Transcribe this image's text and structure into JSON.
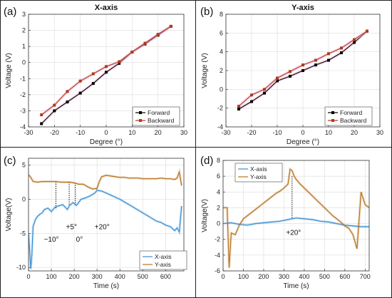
{
  "chart_data": [
    {
      "panel": "(a)",
      "type": "line",
      "title": "X-axis",
      "xlabel": "Degree (°)",
      "ylabel": "Voltage (V)",
      "xlim": [
        -30,
        30
      ],
      "ylim": [
        -4,
        3
      ],
      "xticks": [
        -30,
        -20,
        -10,
        0,
        10,
        20,
        30
      ],
      "yticks": [
        -4,
        -3,
        -2,
        -1,
        0,
        1,
        2,
        3
      ],
      "grid": true,
      "legend": "bottom-right",
      "series": [
        {
          "name": "Forward",
          "color": "#000000",
          "x": [
            -25,
            -20,
            -15,
            -10,
            -5,
            0,
            5,
            10,
            15,
            20,
            25
          ],
          "y": [
            -3.8,
            -3.0,
            -2.45,
            -1.9,
            -1.3,
            -0.6,
            -0.05,
            0.65,
            1.15,
            1.7,
            2.25
          ]
        },
        {
          "name": "Backward",
          "color": "#b03a1a",
          "x": [
            -25,
            -20,
            -15,
            -10,
            -5,
            0,
            5,
            10,
            15,
            20,
            25
          ],
          "y": [
            -3.25,
            -2.65,
            -1.8,
            -1.15,
            -0.7,
            -0.25,
            0.05,
            0.65,
            1.2,
            1.75,
            2.25
          ]
        }
      ]
    },
    {
      "panel": "(b)",
      "type": "line",
      "title": "Y-axis",
      "xlabel": "Degree (°)",
      "ylabel": "Voltage (V)",
      "xlim": [
        -30,
        30
      ],
      "ylim": [
        -4,
        8
      ],
      "xticks": [
        -30,
        -20,
        -10,
        0,
        10,
        20,
        30
      ],
      "yticks": [
        -4,
        -2,
        0,
        2,
        4,
        6,
        8
      ],
      "grid": true,
      "legend": "bottom-right",
      "series": [
        {
          "name": "Forward",
          "color": "#000000",
          "x": [
            -25,
            -20,
            -15,
            -10,
            -5,
            0,
            5,
            10,
            15,
            20,
            25
          ],
          "y": [
            -2.1,
            -1.3,
            -0.4,
            0.9,
            1.4,
            2.0,
            2.6,
            3.1,
            3.9,
            5.0,
            6.2
          ]
        },
        {
          "name": "Backward",
          "color": "#b03a1a",
          "x": [
            -25,
            -20,
            -15,
            -10,
            -5,
            0,
            5,
            10,
            15,
            20,
            25
          ],
          "y": [
            -1.8,
            -0.6,
            0.0,
            1.2,
            1.9,
            2.6,
            3.1,
            3.8,
            4.4,
            5.3,
            6.2
          ]
        }
      ]
    },
    {
      "panel": "(c)",
      "type": "line",
      "xlabel": "Time (s)",
      "ylabel": "Voltage(V)",
      "xlim": [
        0,
        680
      ],
      "ylim": [
        -10.5,
        6
      ],
      "xticks": [
        0,
        100,
        200,
        300,
        400,
        500,
        600
      ],
      "yticks": [
        -10,
        -5,
        0,
        5
      ],
      "grid": true,
      "legend": "bottom-right",
      "annotations": [
        {
          "text": "−10°",
          "x": 120
        },
        {
          "text": "0°",
          "x": 205
        },
        {
          "text": "+5°",
          "x": 170
        },
        {
          "text": "+20°",
          "x": 295
        }
      ],
      "series": [
        {
          "name": "X-axis",
          "color": "#3a8fd0",
          "x": [
            0,
            10,
            15,
            20,
            30,
            40,
            50,
            60,
            70,
            85,
            100,
            115,
            130,
            150,
            170,
            180,
            195,
            210,
            230,
            250,
            270,
            290,
            300,
            320,
            340,
            360,
            380,
            400,
            420,
            440,
            460,
            480,
            500,
            520,
            540,
            560,
            580,
            600,
            620,
            640,
            650,
            660,
            670
          ],
          "y": [
            -5,
            -10.2,
            -8,
            -4,
            -3,
            -2.5,
            -2.2,
            -2,
            -1.5,
            -1.3,
            -1.8,
            -1.2,
            -1.0,
            -0.8,
            -1.5,
            -0.9,
            -0.5,
            -0.9,
            0.0,
            0.2,
            0.5,
            0.9,
            1.3,
            1.2,
            0.9,
            0.6,
            0.3,
            0.0,
            -0.4,
            -0.8,
            -1.2,
            -1.6,
            -2.0,
            -2.4,
            -2.8,
            -3.2,
            -3.4,
            -3.8,
            -4.0,
            -4.6,
            -4.2,
            -4.8,
            -1.0
          ]
        },
        {
          "name": "Y-axis",
          "color": "#b8741f",
          "x": [
            0,
            10,
            20,
            40,
            60,
            80,
            100,
            120,
            140,
            160,
            180,
            200,
            220,
            240,
            260,
            280,
            300,
            310,
            320,
            340,
            360,
            380,
            400,
            420,
            440,
            460,
            480,
            500,
            520,
            540,
            560,
            580,
            600,
            620,
            640,
            650,
            660,
            670
          ],
          "y": [
            3.6,
            3.2,
            2.6,
            2.5,
            2.6,
            2.6,
            2.6,
            2.6,
            2.5,
            2.5,
            2.5,
            2.4,
            2.2,
            2.2,
            1.8,
            1.5,
            1.6,
            2.6,
            3.3,
            3.5,
            3.4,
            3.3,
            3.2,
            3.2,
            3.1,
            3.1,
            3.1,
            3.0,
            3.0,
            3.0,
            3.0,
            3.1,
            3.0,
            3.0,
            2.9,
            3.1,
            4.0,
            2.0
          ]
        }
      ]
    },
    {
      "panel": "(d)",
      "type": "line",
      "xlabel": "Time (s)",
      "ylabel": "Voltage(V)",
      "xlim": [
        0,
        720
      ],
      "ylim": [
        -6,
        8
      ],
      "xticks": [
        0,
        100,
        200,
        300,
        400,
        500,
        600,
        700
      ],
      "yticks": [
        -6,
        -4,
        -2,
        0,
        2,
        4,
        6,
        8
      ],
      "grid": true,
      "legend": "top-left",
      "annotations": [
        {
          "text": "+20°",
          "x": 340
        }
      ],
      "series": [
        {
          "name": "X-axis",
          "color": "#3a8fd0",
          "x": [
            0,
            40,
            80,
            120,
            160,
            200,
            240,
            280,
            320,
            340,
            360,
            400,
            440,
            480,
            520,
            560,
            600,
            640,
            680,
            720
          ],
          "y": [
            0.0,
            0.1,
            -0.1,
            -0.2,
            0.0,
            0.1,
            0.2,
            0.3,
            0.5,
            0.6,
            0.7,
            0.6,
            0.5,
            0.3,
            0.2,
            0.0,
            -0.2,
            -0.3,
            -0.4,
            -0.4
          ]
        },
        {
          "name": "Y-axis",
          "color": "#b8741f",
          "x": [
            0,
            20,
            30,
            40,
            60,
            80,
            100,
            120,
            140,
            160,
            180,
            200,
            220,
            240,
            260,
            280,
            300,
            320,
            330,
            340,
            350,
            360,
            380,
            400,
            420,
            440,
            460,
            480,
            500,
            520,
            540,
            560,
            580,
            600,
            620,
            640,
            660,
            680,
            700,
            720
          ],
          "y": [
            2.0,
            2.0,
            -5.6,
            -1.2,
            -1.4,
            -0.2,
            0.6,
            1.0,
            1.4,
            1.8,
            2.2,
            2.6,
            3.0,
            3.4,
            3.8,
            4.1,
            4.5,
            5.0,
            6.9,
            6.7,
            6.0,
            5.6,
            5.0,
            4.5,
            4.0,
            3.5,
            3.0,
            2.5,
            2.0,
            1.5,
            1.0,
            0.6,
            0.2,
            -0.3,
            -0.6,
            -1.4,
            -3.2,
            4.0,
            2.4,
            2.0
          ]
        }
      ]
    }
  ]
}
